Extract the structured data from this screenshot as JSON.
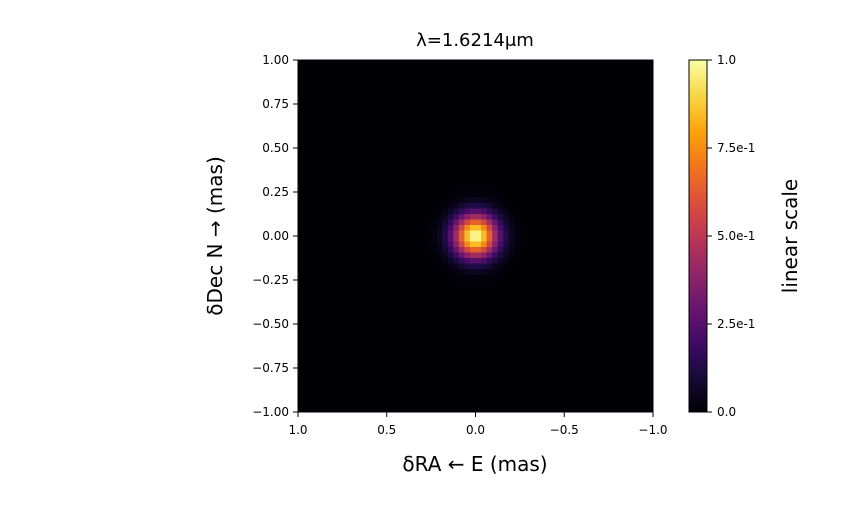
{
  "chart_data": {
    "type": "heatmap",
    "title": "λ=1.6214μm",
    "xlabel": "δRA ← E (mas)",
    "ylabel": "δDec N → (mas)",
    "xlim": [
      1.0,
      -1.0
    ],
    "ylim": [
      -1.0,
      1.0
    ],
    "x_ticks": [
      "1.0",
      "0.5",
      "0.0",
      "−0.5",
      "−1.0"
    ],
    "x_tick_values": [
      1.0,
      0.5,
      0.0,
      -0.5,
      -1.0
    ],
    "y_ticks": [
      "1.00",
      "0.75",
      "0.50",
      "0.25",
      "0.00",
      "−0.25",
      "−0.50",
      "−0.75",
      "−1.00"
    ],
    "y_tick_values": [
      1.0,
      0.75,
      0.5,
      0.25,
      0.0,
      -0.25,
      -0.5,
      -0.75,
      -1.0
    ],
    "colormap": "inferno",
    "colorbar": {
      "label": "linear scale",
      "range": [
        0.0,
        1.0
      ],
      "ticks": [
        "1.0",
        "7.5e-1",
        "5.0e-1",
        "2.5e-1",
        "0.0"
      ],
      "tick_values": [
        1.0,
        0.75,
        0.5,
        0.25,
        0.0
      ]
    },
    "source": {
      "shape": "gaussian",
      "center": [
        0.0,
        0.0
      ],
      "peak": 1.0,
      "sigma_mas": 0.085
    },
    "grid": false,
    "pixels": 64
  }
}
